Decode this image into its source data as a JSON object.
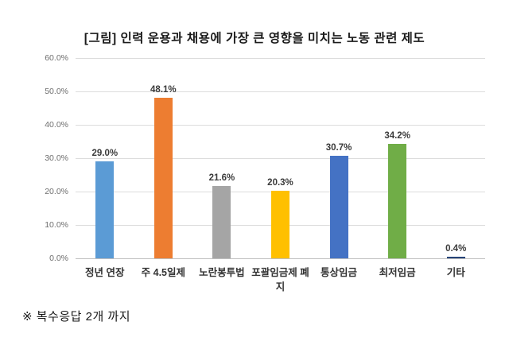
{
  "title": "[그림] 인력 운용과 채용에 가장 큰 영향을 미치는 노동 관련 제도",
  "footnote": "※ 복수응답 2개 까지",
  "chart_data": {
    "type": "bar",
    "title": "[그림] 인력 운용과 채용에 가장 큰 영향을 미치는 노동 관련 제도",
    "categories": [
      "정년 연장",
      "주 4.5일제",
      "노란봉투법",
      "포괄임금제 폐지",
      "통상임금",
      "최저임금",
      "기타"
    ],
    "values": [
      29.0,
      48.1,
      21.6,
      20.3,
      30.7,
      34.2,
      0.4
    ],
    "value_labels": [
      "29.0%",
      "48.1%",
      "21.6%",
      "20.3%",
      "30.7%",
      "34.2%",
      "0.4%"
    ],
    "bar_colors": [
      "#5B9BD5",
      "#ED7D31",
      "#A5A5A5",
      "#FFC000",
      "#4472C4",
      "#70AD47",
      "#264478"
    ],
    "xlabel": "",
    "ylabel": "",
    "ylim": [
      0,
      60
    ],
    "ytick_step": 10,
    "ytick_labels": [
      "0.0%",
      "10.0%",
      "20.0%",
      "30.0%",
      "40.0%",
      "50.0%",
      "60.0%"
    ],
    "grid": true,
    "legend": false,
    "annotation": "※ 복수응답 2개 까지"
  }
}
